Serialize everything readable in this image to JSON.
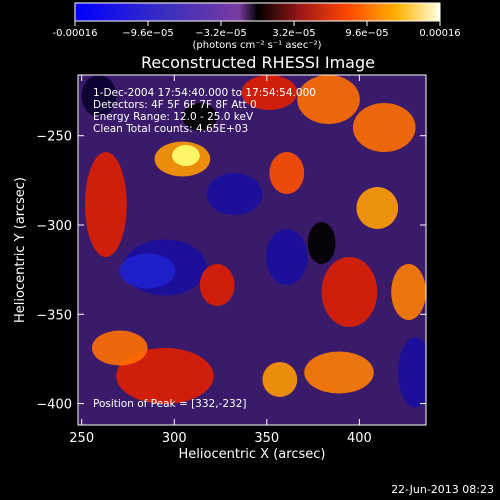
{
  "chart_data": {
    "type": "heatmap",
    "title": "Reconstructed RHESSI Image",
    "xlabel": "Heliocentric X (arcsec)",
    "ylabel": "Heliocentric Y (arcsec)",
    "xlim": [
      248,
      436
    ],
    "ylim": [
      -412,
      -216
    ],
    "xticks": [
      250,
      300,
      350,
      400
    ],
    "yticks": [
      -250,
      -300,
      -350,
      -400
    ],
    "colorbar": {
      "min": -0.00016,
      "max": 0.00016,
      "ticks": [
        "-0.00016",
        "−9.6e−05",
        "−3.2e−05",
        "3.2e−05",
        "9.6e−05",
        "0.00016"
      ],
      "units_label": "(photons cm⁻² s⁻¹ asec⁻²)"
    },
    "info_lines": [
      "1-Dec-2004 17:54:40.000 to 17:54:54.000",
      "Detectors: 4F 5F 6F 7F 8F  Att 0",
      "Energy Range: 12.0 - 25.0 keV",
      "Clean     Total counts: 4.65E+03"
    ],
    "peak_label": "Position of Peak = [332,-232]",
    "grid": false,
    "colors": {
      "background": "#000000",
      "text": "#ffffff"
    }
  },
  "footer": {
    "timestamp": "22-Jun-2013 08:23"
  }
}
